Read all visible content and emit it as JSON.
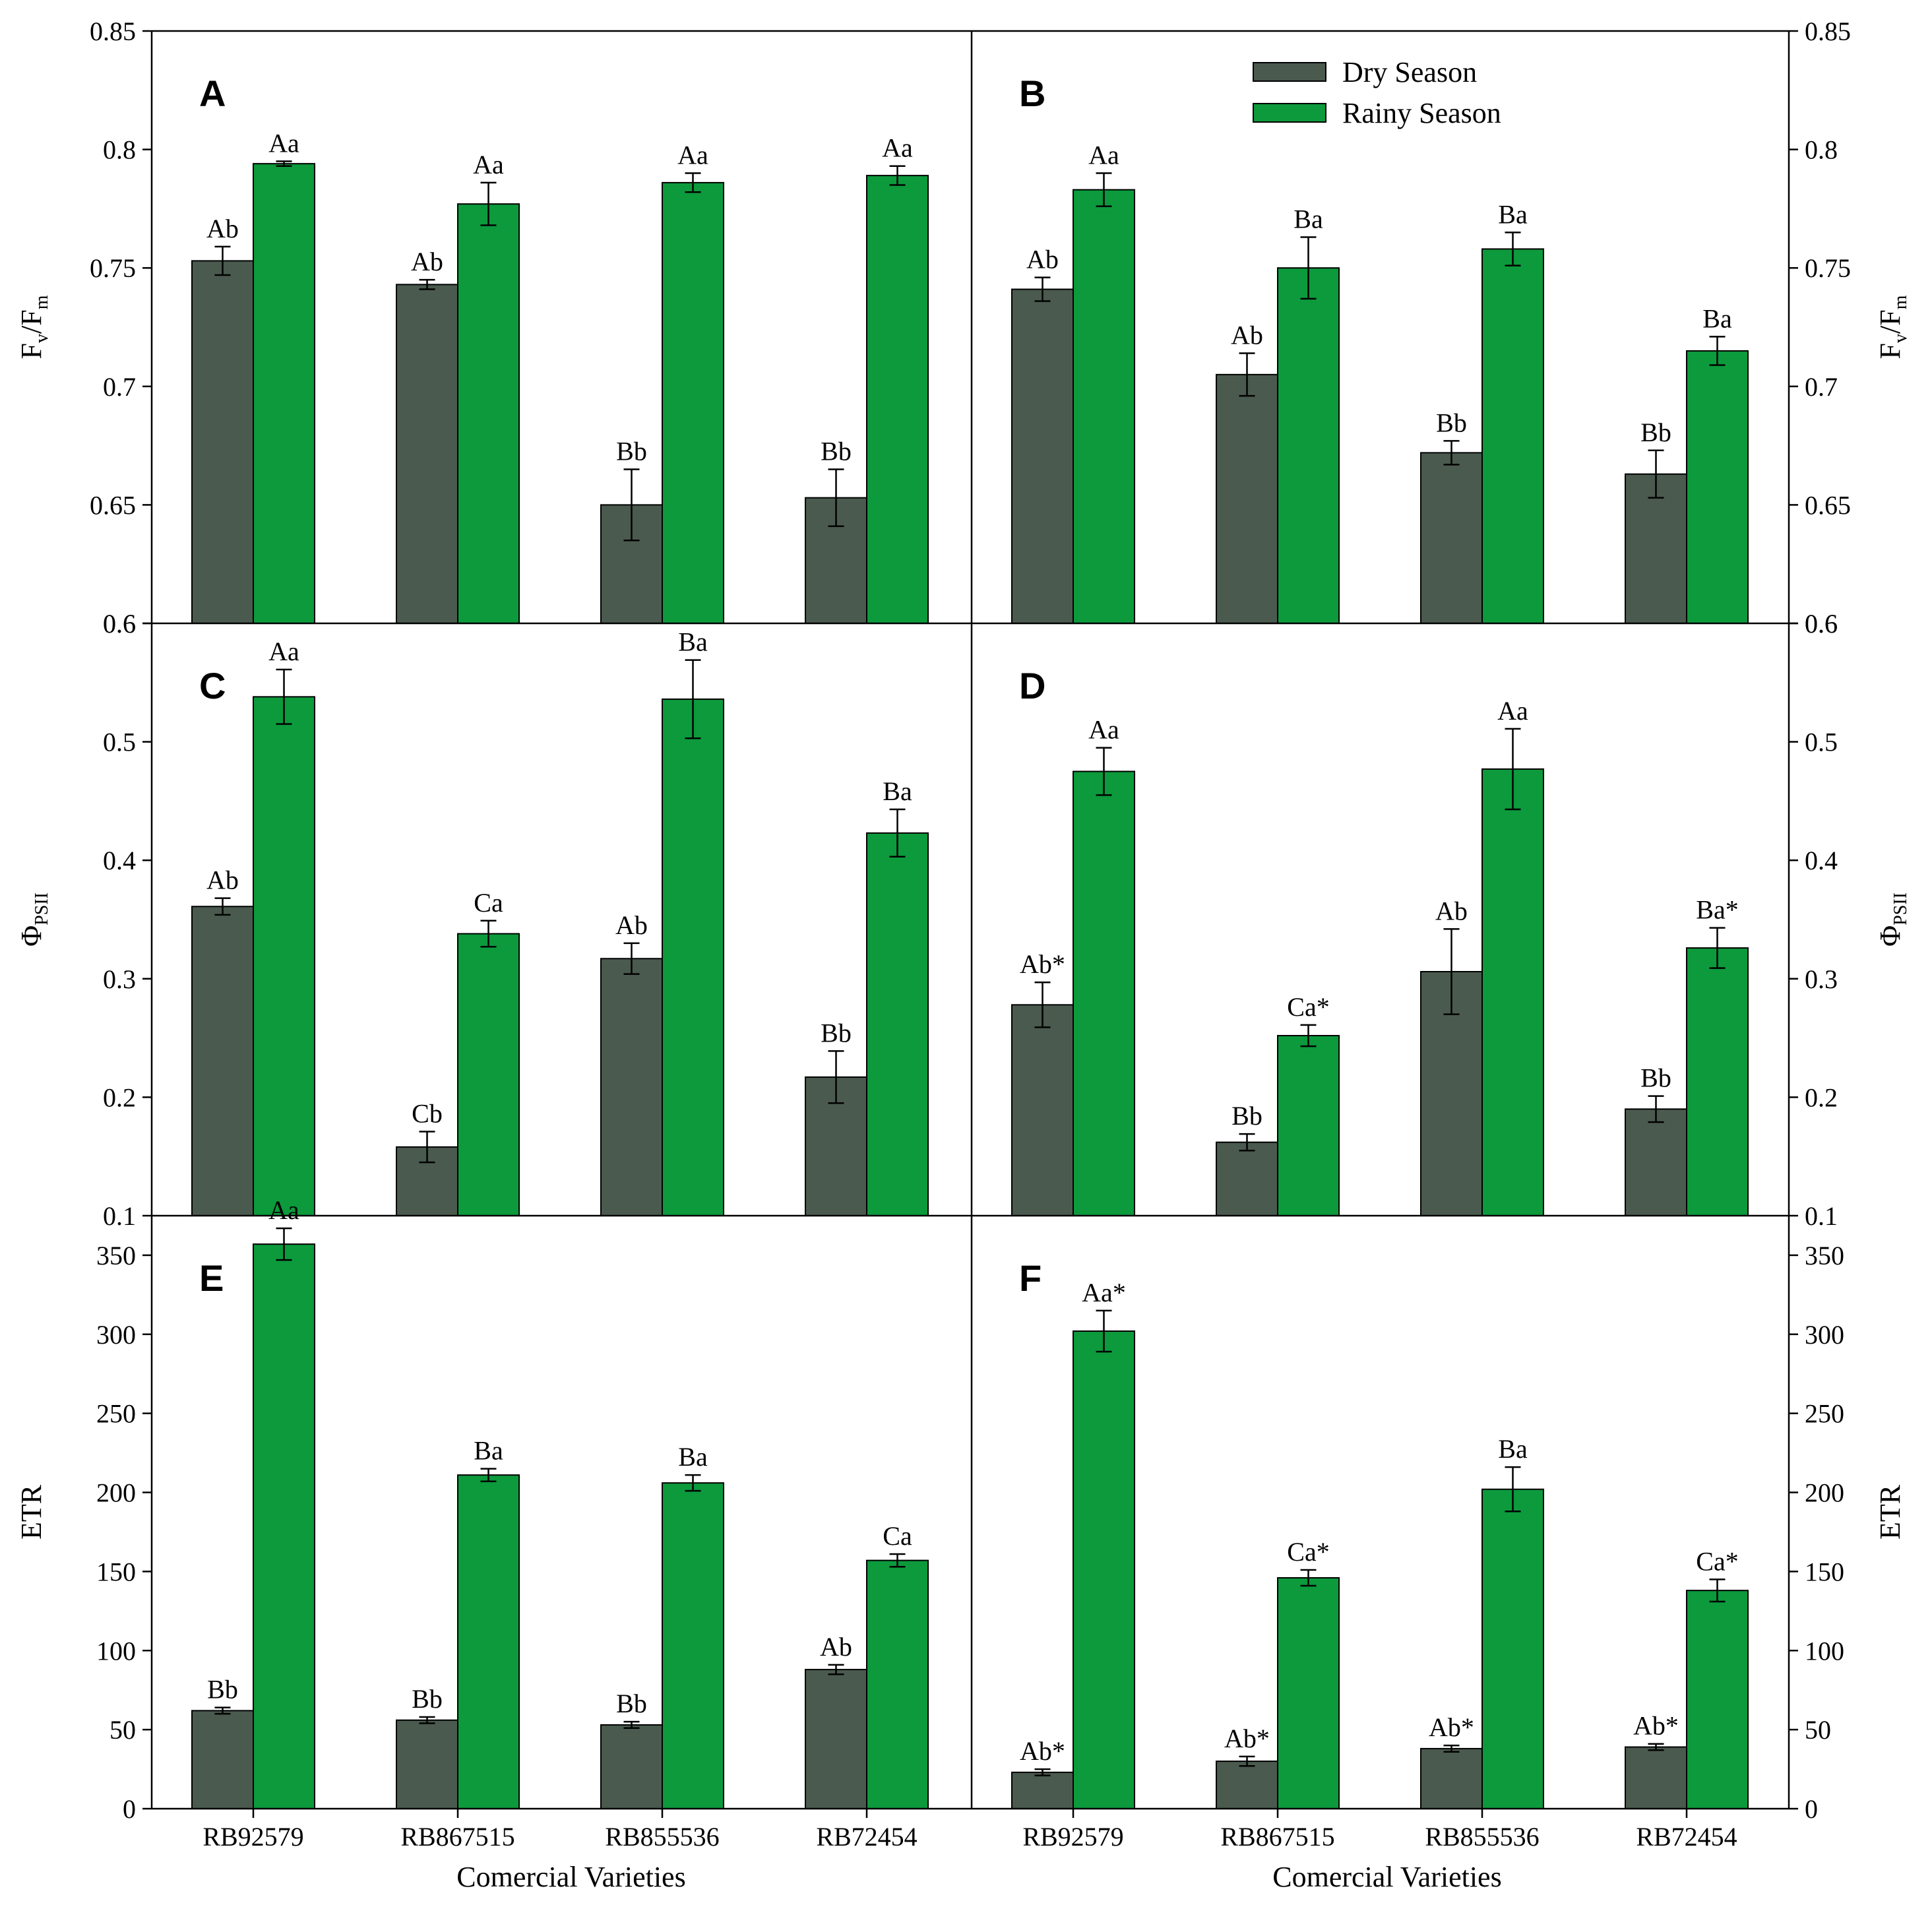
{
  "colors": {
    "dry": "#4a5a4e",
    "rainy": "#0c9a3c"
  },
  "legend": [
    "Dry Season",
    "Rainy Season"
  ],
  "x_axis_title": "Comercial Varieties",
  "chart_data": [
    {
      "type": "bar",
      "panel": "A",
      "ylabel_main": "F",
      "ylabel_sub1": "v",
      "ylabel_mid": "/F",
      "ylabel_sub2": "m",
      "categories": [
        "RB92579",
        "RB867515",
        "RB855536",
        "RB72454"
      ],
      "ylim": [
        0.6,
        0.85
      ],
      "ticks": [
        0.6,
        0.65,
        0.7,
        0.75,
        0.8,
        0.85
      ],
      "tick_labels": [
        "0.6",
        "0.65",
        "0.7",
        "0.75",
        "0.8",
        "0.85"
      ],
      "series": [
        {
          "name": "Dry Season",
          "values": [
            0.753,
            0.743,
            0.65,
            0.653
          ],
          "errors": [
            0.006,
            0.002,
            0.015,
            0.012
          ],
          "labels": [
            "Ab",
            "Ab",
            "Bb",
            "Bb"
          ]
        },
        {
          "name": "Rainy Season",
          "values": [
            0.794,
            0.777,
            0.786,
            0.789
          ],
          "errors": [
            0.001,
            0.009,
            0.004,
            0.004
          ],
          "labels": [
            "Aa",
            "Aa",
            "Aa",
            "Aa"
          ]
        }
      ]
    },
    {
      "type": "bar",
      "panel": "B",
      "ylabel_main": "F",
      "ylabel_sub1": "v",
      "ylabel_mid": "/F",
      "ylabel_sub2": "m",
      "categories": [
        "RB92579",
        "RB867515",
        "RB855536",
        "RB72454"
      ],
      "ylim": [
        0.6,
        0.85
      ],
      "ticks": [
        0.6,
        0.65,
        0.7,
        0.75,
        0.8,
        0.85
      ],
      "tick_labels": [
        "0.6",
        "0.65",
        "0.7",
        "0.75",
        "0.8",
        "0.85"
      ],
      "series": [
        {
          "name": "Dry Season",
          "values": [
            0.741,
            0.705,
            0.672,
            0.663
          ],
          "errors": [
            0.005,
            0.009,
            0.005,
            0.01
          ],
          "labels": [
            "Ab",
            "Ab",
            "Bb",
            "Bb"
          ]
        },
        {
          "name": "Rainy Season",
          "values": [
            0.783,
            0.75,
            0.758,
            0.715
          ],
          "errors": [
            0.007,
            0.013,
            0.007,
            0.006
          ],
          "labels": [
            "Aa",
            "Ba",
            "Ba",
            "Ba"
          ]
        }
      ]
    },
    {
      "type": "bar",
      "panel": "C",
      "ylabel_main": "Φ",
      "ylabel_sub1": "PSII",
      "categories": [
        "RB92579",
        "RB867515",
        "RB855536",
        "RB72454"
      ],
      "ylim": [
        0.1,
        0.6
      ],
      "ticks": [
        0.1,
        0.2,
        0.3,
        0.4,
        0.5,
        0.6
      ],
      "tick_labels": [
        "0.1",
        "0.2",
        "0.3",
        "0.4",
        "0.5",
        "0.6"
      ],
      "series": [
        {
          "name": "Dry Season",
          "values": [
            0.361,
            0.158,
            0.317,
            0.217
          ],
          "errors": [
            0.007,
            0.013,
            0.013,
            0.022
          ],
          "labels": [
            "Ab",
            "Cb",
            "Ab",
            "Bb"
          ]
        },
        {
          "name": "Rainy Season",
          "values": [
            0.538,
            0.338,
            0.536,
            0.423
          ],
          "errors": [
            0.023,
            0.011,
            0.033,
            0.02
          ],
          "labels": [
            "Aa",
            "Ca",
            "Ba",
            "Ba"
          ]
        }
      ]
    },
    {
      "type": "bar",
      "panel": "D",
      "ylabel_main": "Φ",
      "ylabel_sub1": "PSII",
      "categories": [
        "RB92579",
        "RB867515",
        "RB855536",
        "RB72454"
      ],
      "ylim": [
        0.1,
        0.6
      ],
      "ticks": [
        0.1,
        0.2,
        0.3,
        0.4,
        0.5,
        0.6
      ],
      "tick_labels": [
        "0.1",
        "0.2",
        "0.3",
        "0.4",
        "0.5",
        "0.6"
      ],
      "series": [
        {
          "name": "Dry Season",
          "values": [
            0.278,
            0.162,
            0.306,
            0.19
          ],
          "errors": [
            0.019,
            0.007,
            0.036,
            0.011
          ],
          "labels": [
            "Ab*",
            "Bb",
            "Ab",
            "Bb"
          ]
        },
        {
          "name": "Rainy Season",
          "values": [
            0.475,
            0.252,
            0.477,
            0.326
          ],
          "errors": [
            0.02,
            0.009,
            0.034,
            0.017
          ],
          "labels": [
            "Aa",
            "Ca*",
            "Aa",
            "Ba*"
          ]
        }
      ]
    },
    {
      "type": "bar",
      "panel": "E",
      "ylabel_main": "ETR",
      "categories": [
        "RB92579",
        "RB867515",
        "RB855536",
        "RB72454"
      ],
      "ylim": [
        0,
        375
      ],
      "ticks": [
        0,
        50,
        100,
        150,
        200,
        250,
        300,
        350
      ],
      "tick_labels": [
        "0",
        "50",
        "100",
        "150",
        "200",
        "250",
        "300",
        "350"
      ],
      "series": [
        {
          "name": "Dry Season",
          "values": [
            62,
            56,
            53,
            88
          ],
          "errors": [
            2,
            2,
            2,
            3
          ],
          "labels": [
            "Bb",
            "Bb",
            "Bb",
            "Ab"
          ]
        },
        {
          "name": "Rainy Season",
          "values": [
            357,
            211,
            206,
            157
          ],
          "errors": [
            10,
            4,
            5,
            4
          ],
          "labels": [
            "Aa",
            "Ba",
            "Ba",
            "Ca"
          ]
        }
      ]
    },
    {
      "type": "bar",
      "panel": "F",
      "ylabel_main": "ETR",
      "categories": [
        "RB92579",
        "RB867515",
        "RB855536",
        "RB72454"
      ],
      "ylim": [
        0,
        375
      ],
      "ticks": [
        0,
        50,
        100,
        150,
        200,
        250,
        300,
        350
      ],
      "tick_labels": [
        "0",
        "50",
        "100",
        "150",
        "200",
        "250",
        "300",
        "350"
      ],
      "series": [
        {
          "name": "Dry Season",
          "values": [
            23,
            30,
            38,
            39
          ],
          "errors": [
            2,
            3,
            2,
            2
          ],
          "labels": [
            "Ab*",
            "Ab*",
            "Ab*",
            "Ab*"
          ]
        },
        {
          "name": "Rainy Season",
          "values": [
            302,
            146,
            202,
            138
          ],
          "errors": [
            13,
            5,
            14,
            7
          ],
          "labels": [
            "Aa*",
            "Ca*",
            "Ba",
            "Ca*"
          ]
        }
      ]
    }
  ]
}
